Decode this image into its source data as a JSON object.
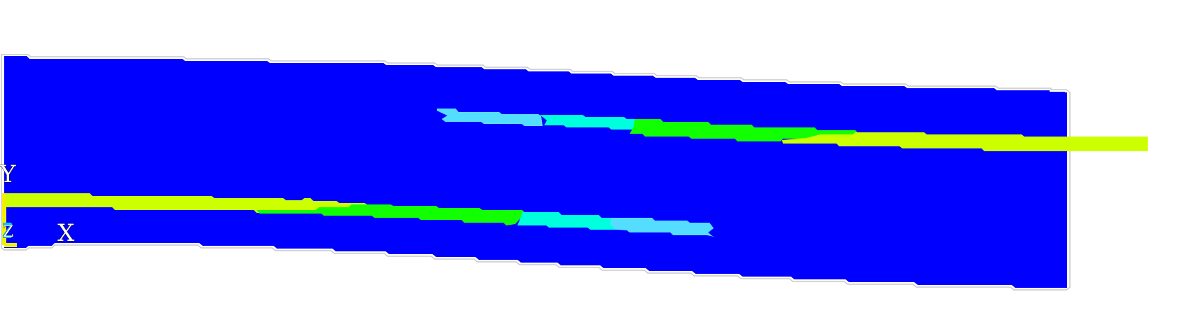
{
  "triad": {
    "y_label": "Y",
    "x_label": "X",
    "z_label": "Z"
  },
  "colors": {
    "background": "#ffffff",
    "base": "#0000ff",
    "outline": "#c8c8c8",
    "light_cyan": "#55ddff",
    "cyan": "#00ffdd",
    "green": "#11ff00",
    "yellow_green": "#ccff00",
    "triad_axis": "#f0f000",
    "triad_small": "#00c8ff"
  }
}
